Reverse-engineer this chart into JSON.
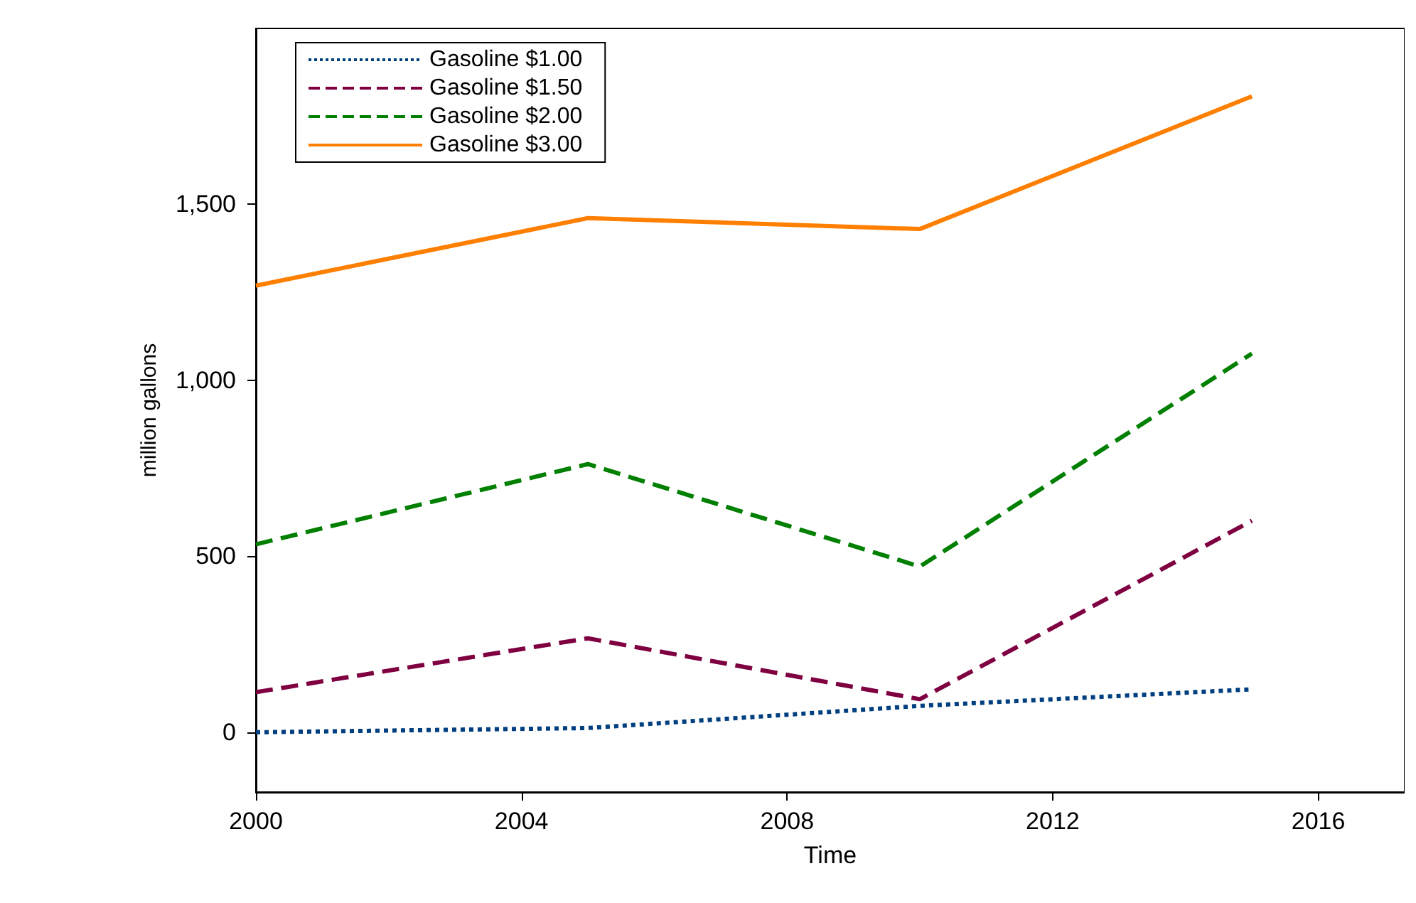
{
  "chart_data": {
    "type": "line",
    "xlabel": "Time",
    "ylabel": "million gallons",
    "x": [
      2000,
      2005,
      2010,
      2015
    ],
    "series": [
      {
        "name": "Gasoline $1.00",
        "color": "#003f7f",
        "line_style": "dotted",
        "values": [
          0,
          12,
          75,
          122
        ]
      },
      {
        "name": "Gasoline $1.50",
        "color": "#7f0040",
        "line_style": "dashed",
        "values": [
          114,
          267,
          94,
          601
        ]
      },
      {
        "name": "Gasoline $2.00",
        "color": "#007f00",
        "line_style": "dashed",
        "values": [
          534,
          762,
          471,
          1076
        ]
      },
      {
        "name": "Gasoline $3.00",
        "color": "#ff7f00",
        "line_style": "solid",
        "values": [
          1269,
          1461,
          1430,
          1807
        ]
      }
    ],
    "xlim": [
      2000,
      2017.3
    ],
    "xticks": [
      2000,
      2004,
      2008,
      2012,
      2016
    ],
    "ylim": [
      -170,
      2000
    ],
    "yticks": [
      0,
      500,
      {
        "value": 1000,
        "label": "1,000"
      },
      {
        "value": 1500,
        "label": "1,500"
      }
    ],
    "grid": false,
    "legend": "top left",
    "marker": "none"
  }
}
